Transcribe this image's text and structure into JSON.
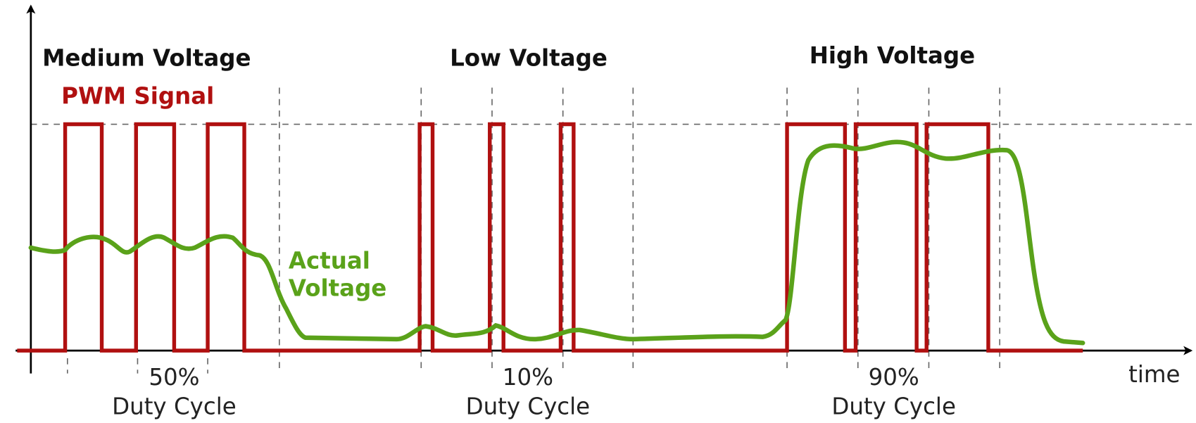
{
  "axis": {
    "x_label": "time"
  },
  "legend": {
    "pwm": "PWM Signal",
    "actual": [
      "Actual",
      "Voltage"
    ]
  },
  "sections": [
    {
      "title": "Medium Voltage",
      "duty": "50%",
      "caption": "Duty Cycle"
    },
    {
      "title": "Low Voltage",
      "duty": "10%",
      "caption": "Duty Cycle"
    },
    {
      "title": "High Voltage",
      "duty": "90%",
      "caption": "Duty Cycle"
    }
  ]
}
